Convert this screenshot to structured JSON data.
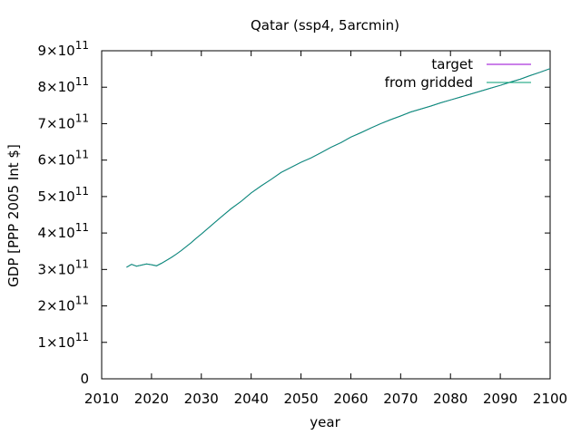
{
  "chart_data": {
    "type": "line",
    "title": "Qatar (ssp4, 5arcmin)",
    "xlabel": "year",
    "ylabel": "GDP [PPP 2005 Int $]",
    "xlim": [
      2010,
      2100
    ],
    "ylim": [
      0,
      900000000000
    ],
    "x_ticks": [
      "2010",
      "2020",
      "2030",
      "2040",
      "2050",
      "2060",
      "2070",
      "2080",
      "2090",
      "2100"
    ],
    "y_ticks": [
      {
        "value": 0,
        "mantissa": "0",
        "exp": ""
      },
      {
        "value": 100000000000,
        "mantissa": "1×10",
        "exp": "11"
      },
      {
        "value": 200000000000,
        "mantissa": "2×10",
        "exp": "11"
      },
      {
        "value": 300000000000,
        "mantissa": "3×10",
        "exp": "11"
      },
      {
        "value": 400000000000,
        "mantissa": "4×10",
        "exp": "11"
      },
      {
        "value": 500000000000,
        "mantissa": "5×10",
        "exp": "11"
      },
      {
        "value": 600000000000,
        "mantissa": "6×10",
        "exp": "11"
      },
      {
        "value": 700000000000,
        "mantissa": "7×10",
        "exp": "11"
      },
      {
        "value": 800000000000,
        "mantissa": "8×10",
        "exp": "11"
      },
      {
        "value": 900000000000,
        "mantissa": "9×10",
        "exp": "11"
      }
    ],
    "grid": false,
    "legend": "top-right",
    "x": [
      2015,
      2016,
      2017,
      2018,
      2019,
      2020,
      2021,
      2022,
      2023,
      2024,
      2025,
      2026,
      2027,
      2028,
      2029,
      2030,
      2032,
      2034,
      2036,
      2038,
      2040,
      2042,
      2044,
      2046,
      2048,
      2050,
      2052,
      2054,
      2056,
      2058,
      2060,
      2062,
      2064,
      2066,
      2068,
      2070,
      2072,
      2074,
      2076,
      2078,
      2080,
      2082,
      2084,
      2086,
      2088,
      2090,
      2092,
      2094,
      2096,
      2098,
      2100
    ],
    "series": [
      {
        "name": "target",
        "color": "#9400d3",
        "values": [
          306000000000,
          314000000000,
          309000000000,
          312000000000,
          315000000000,
          313000000000,
          310000000000,
          317000000000,
          325000000000,
          333000000000,
          342000000000,
          352000000000,
          363000000000,
          374000000000,
          386000000000,
          397000000000,
          421000000000,
          444000000000,
          467000000000,
          487000000000,
          510000000000,
          529000000000,
          547000000000,
          566000000000,
          580000000000,
          594000000000,
          606000000000,
          620000000000,
          635000000000,
          648000000000,
          663000000000,
          675000000000,
          688000000000,
          700000000000,
          711000000000,
          721000000000,
          732000000000,
          740000000000,
          748000000000,
          757000000000,
          765000000000,
          773000000000,
          781000000000,
          789000000000,
          797000000000,
          805000000000,
          814000000000,
          822000000000,
          832000000000,
          841000000000,
          851000000000
        ]
      },
      {
        "name": "from gridded",
        "color": "#009e73",
        "values": [
          306000000000,
          314000000000,
          309000000000,
          312000000000,
          315000000000,
          313000000000,
          310000000000,
          317000000000,
          325000000000,
          333000000000,
          342000000000,
          352000000000,
          363000000000,
          374000000000,
          386000000000,
          397000000000,
          421000000000,
          444000000000,
          467000000000,
          487000000000,
          510000000000,
          529000000000,
          547000000000,
          566000000000,
          580000000000,
          594000000000,
          606000000000,
          620000000000,
          635000000000,
          648000000000,
          663000000000,
          675000000000,
          688000000000,
          700000000000,
          711000000000,
          721000000000,
          732000000000,
          740000000000,
          748000000000,
          757000000000,
          765000000000,
          773000000000,
          781000000000,
          789000000000,
          797000000000,
          805000000000,
          814000000000,
          822000000000,
          832000000000,
          841000000000,
          851000000000
        ]
      }
    ]
  }
}
